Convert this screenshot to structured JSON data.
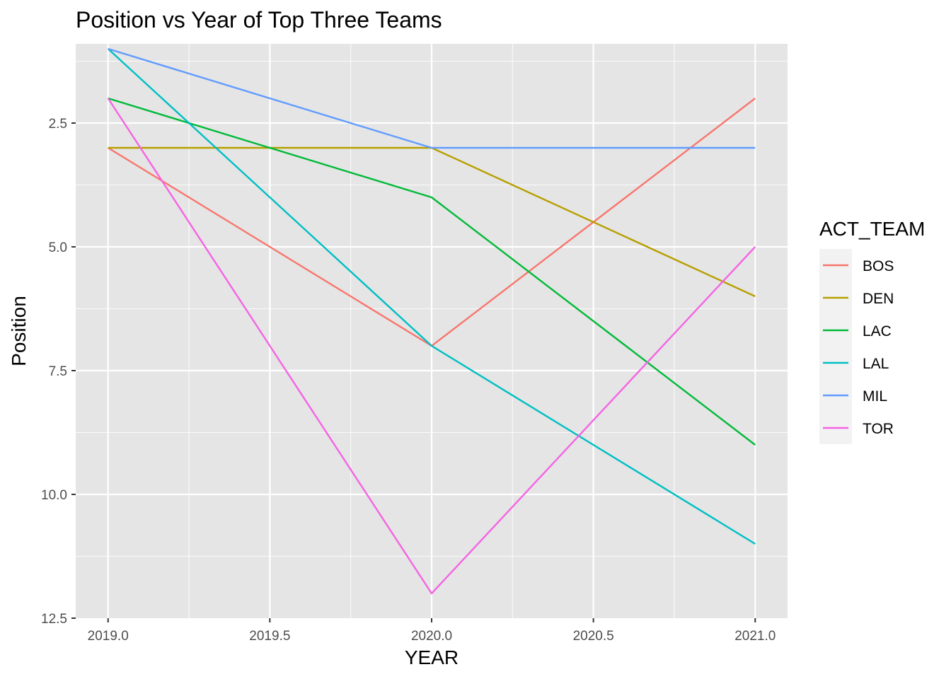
{
  "chart_data": {
    "type": "line",
    "title": "Position vs Year of Top Three Teams",
    "xlabel": "YEAR",
    "ylabel": "Position",
    "xlim": [
      2018.9,
      2021.1
    ],
    "ylim": [
      0.9,
      12.5
    ],
    "y_reversed": true,
    "x_ticks": [
      2019.0,
      2019.5,
      2020.0,
      2020.5,
      2021.0
    ],
    "x_tick_labels": [
      "2019.0",
      "2019.5",
      "2020.0",
      "2020.5",
      "2021.0"
    ],
    "y_ticks": [
      2.5,
      5.0,
      7.5,
      10.0,
      12.5
    ],
    "y_tick_labels": [
      "2.5",
      "5.0",
      "7.5",
      "10.0",
      "12.5"
    ],
    "grid": true,
    "panel_background": "#e5e5e5",
    "grid_color": "#ffffff",
    "legend": {
      "title": "ACT_TEAM",
      "placement": "right"
    },
    "x": [
      2019,
      2020,
      2021
    ],
    "series": [
      {
        "name": "BOS",
        "color": "#f8766d",
        "values": [
          3,
          7,
          2
        ]
      },
      {
        "name": "DEN",
        "color": "#b79f00",
        "values": [
          3,
          3,
          6
        ]
      },
      {
        "name": "LAC",
        "color": "#00ba38",
        "values": [
          2,
          4,
          9
        ]
      },
      {
        "name": "LAL",
        "color": "#00bfc4",
        "values": [
          1,
          7,
          11
        ]
      },
      {
        "name": "MIL",
        "color": "#619cff",
        "values": [
          1,
          3,
          3
        ]
      },
      {
        "name": "TOR",
        "color": "#f564e3",
        "values": [
          2,
          12,
          5
        ]
      }
    ]
  }
}
